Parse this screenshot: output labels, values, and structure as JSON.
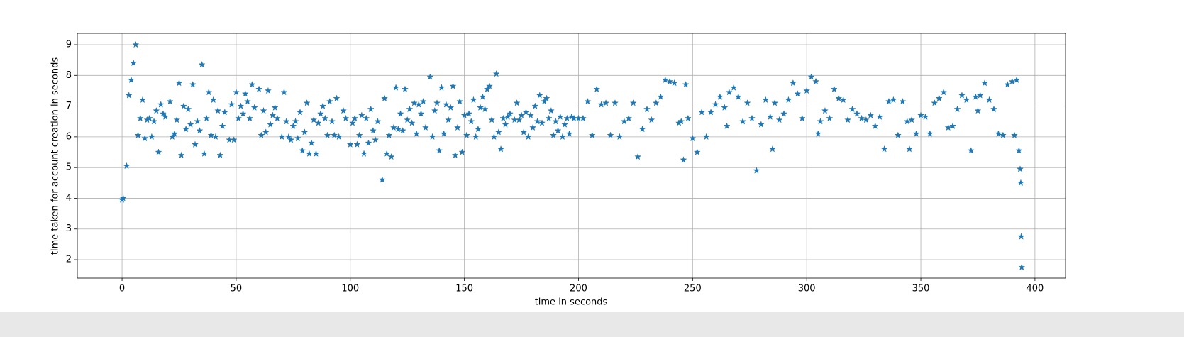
{
  "chart_data": {
    "type": "scatter",
    "xlabel": "time in seconds",
    "ylabel": "time taken for account creation in seconds",
    "color": "#1f77b4",
    "marker": "star",
    "grid": true,
    "xlim": [
      -19.6,
      413.4
    ],
    "ylim": [
      1.4,
      9.37
    ],
    "xticks": [
      0,
      50,
      100,
      150,
      200,
      250,
      300,
      350,
      400
    ],
    "yticks": [
      2,
      3,
      4,
      5,
      6,
      7,
      8,
      9
    ],
    "x": [
      0,
      0.5,
      2,
      3,
      4,
      5,
      6,
      7,
      8,
      9,
      10,
      11,
      12,
      13,
      14,
      15,
      16,
      17,
      18,
      19,
      21,
      22,
      23,
      24,
      25,
      26,
      27,
      28,
      29,
      30,
      31,
      32,
      33,
      34,
      35,
      36,
      37,
      38,
      39,
      40,
      41,
      42,
      43,
      44,
      45,
      47,
      48,
      49,
      50,
      51,
      52,
      53,
      54,
      55,
      56,
      57,
      58,
      60,
      61,
      62,
      63,
      64,
      65,
      66,
      67,
      68,
      70,
      71,
      72,
      73,
      74,
      75,
      76,
      77,
      78,
      79,
      80,
      81,
      82,
      83,
      84,
      85,
      86,
      87,
      88,
      89,
      90,
      91,
      92,
      93,
      94,
      95,
      97,
      98,
      100,
      101,
      102,
      103,
      104,
      105,
      106,
      107,
      108,
      109,
      110,
      111,
      112,
      114,
      115,
      116,
      117,
      118,
      119,
      120,
      121,
      122,
      123,
      124,
      125,
      126,
      127,
      128,
      129,
      130,
      131,
      132,
      133,
      135,
      136,
      137,
      138,
      139,
      140,
      141,
      142,
      143,
      144,
      145,
      146,
      147,
      148,
      149,
      150,
      151,
      152,
      153,
      154,
      155,
      156,
      157,
      158,
      159,
      160,
      161,
      162,
      163,
      164,
      165,
      166,
      167,
      168,
      169,
      170,
      172,
      173,
      174,
      175,
      176,
      177,
      178,
      179,
      180,
      181,
      182,
      183,
      184,
      185,
      186,
      187,
      188,
      189,
      190,
      191,
      192,
      193,
      194,
      195,
      196,
      197,
      198,
      200,
      202,
      204,
      206,
      208,
      210,
      212,
      214,
      216,
      218,
      220,
      222,
      224,
      226,
      228,
      230,
      232,
      234,
      236,
      238,
      240,
      242,
      244,
      246,
      247,
      248,
      250,
      252,
      254,
      256,
      258,
      260,
      262,
      264,
      266,
      268,
      270,
      272,
      274,
      276,
      278,
      280,
      282,
      284,
      286,
      288,
      290,
      292,
      294,
      296,
      298,
      300,
      302,
      304,
      306,
      308,
      310,
      312,
      314,
      316,
      318,
      320,
      322,
      324,
      326,
      328,
      330,
      332,
      334,
      336,
      338,
      340,
      342,
      344,
      346,
      348,
      350,
      352,
      354,
      356,
      358,
      360,
      362,
      364,
      366,
      368,
      370,
      372,
      374,
      376,
      378,
      380,
      382,
      384,
      386,
      388,
      390,
      391,
      392,
      393,
      393.5,
      393.8,
      394,
      394.2,
      375,
      345,
      305,
      285,
      265,
      245
    ],
    "values": [
      3.95,
      4.0,
      5.05,
      7.35,
      7.85,
      8.4,
      9.0,
      6.05,
      6.6,
      7.2,
      5.95,
      6.55,
      6.6,
      6.0,
      6.5,
      6.85,
      5.5,
      7.05,
      6.75,
      6.65,
      7.15,
      6.0,
      6.1,
      6.55,
      7.75,
      5.4,
      7.0,
      6.25,
      6.9,
      6.4,
      7.7,
      5.75,
      6.5,
      6.2,
      8.35,
      5.45,
      6.6,
      7.45,
      6.05,
      7.2,
      6.0,
      6.85,
      5.4,
      6.35,
      6.8,
      5.9,
      7.05,
      5.9,
      7.45,
      6.6,
      7.0,
      6.75,
      7.4,
      7.15,
      6.6,
      7.7,
      6.95,
      7.55,
      6.05,
      6.85,
      6.15,
      7.5,
      6.4,
      6.7,
      6.95,
      6.6,
      6.0,
      7.45,
      6.5,
      6.0,
      5.9,
      6.35,
      6.5,
      5.95,
      6.8,
      5.55,
      6.15,
      7.1,
      5.45,
      5.8,
      6.55,
      5.45,
      6.45,
      6.75,
      7.0,
      6.6,
      6.05,
      7.15,
      6.5,
      6.05,
      7.25,
      6.0,
      6.85,
      6.6,
      5.75,
      6.45,
      6.6,
      5.75,
      6.05,
      6.7,
      5.45,
      6.6,
      5.8,
      6.9,
      6.2,
      5.9,
      6.5,
      4.6,
      7.25,
      5.45,
      6.05,
      5.35,
      6.3,
      7.6,
      6.25,
      6.75,
      6.2,
      7.55,
      6.55,
      6.9,
      6.45,
      7.1,
      6.1,
      7.05,
      6.75,
      7.15,
      6.3,
      7.95,
      6.0,
      6.85,
      7.1,
      5.55,
      7.6,
      6.1,
      7.05,
      6.55,
      6.95,
      7.65,
      5.4,
      6.3,
      7.15,
      5.5,
      6.7,
      6.05,
      6.75,
      6.5,
      7.2,
      6.0,
      6.25,
      6.95,
      7.3,
      6.9,
      7.55,
      7.65,
      6.55,
      6.0,
      8.05,
      6.15,
      5.6,
      6.6,
      6.4,
      6.65,
      6.75,
      6.55,
      7.1,
      6.55,
      6.7,
      6.15,
      6.8,
      6.0,
      6.7,
      6.3,
      7.0,
      6.5,
      7.35,
      6.45,
      7.15,
      7.25,
      6.6,
      6.85,
      6.05,
      6.5,
      6.2,
      6.65,
      6.0,
      6.4,
      6.6,
      6.1,
      6.65,
      6.6,
      6.6,
      6.6,
      7.15,
      6.05,
      7.55,
      7.05,
      7.1,
      6.05,
      7.1,
      6.0,
      6.5,
      6.6,
      7.1,
      5.35,
      6.25,
      6.9,
      6.55,
      7.1,
      7.3,
      7.85,
      7.8,
      7.75,
      6.45,
      5.25,
      7.7,
      6.6,
      5.95,
      5.5,
      6.8,
      6.0,
      6.8,
      7.05,
      7.3,
      6.95,
      7.45,
      7.6,
      7.3,
      6.5,
      7.1,
      6.6,
      4.9,
      6.4,
      7.2,
      6.65,
      7.1,
      6.55,
      6.75,
      7.2,
      7.75,
      7.4,
      6.6,
      7.5,
      7.95,
      7.8,
      6.5,
      6.85,
      6.6,
      7.55,
      7.25,
      7.2,
      6.55,
      6.9,
      6.75,
      6.6,
      6.55,
      6.7,
      6.35,
      6.65,
      5.6,
      7.15,
      7.2,
      6.05,
      7.15,
      6.5,
      6.55,
      6.1,
      6.7,
      6.65,
      6.1,
      7.1,
      7.25,
      7.45,
      6.3,
      6.35,
      6.9,
      7.35,
      7.2,
      5.55,
      7.3,
      7.35,
      7.75,
      7.2,
      6.9,
      6.1,
      6.05,
      7.7,
      7.8,
      6.05,
      7.85,
      5.55,
      4.95,
      4.5,
      2.75,
      1.75,
      6.85,
      5.6,
      6.1,
      5.6,
      6.35,
      6.5
    ]
  }
}
